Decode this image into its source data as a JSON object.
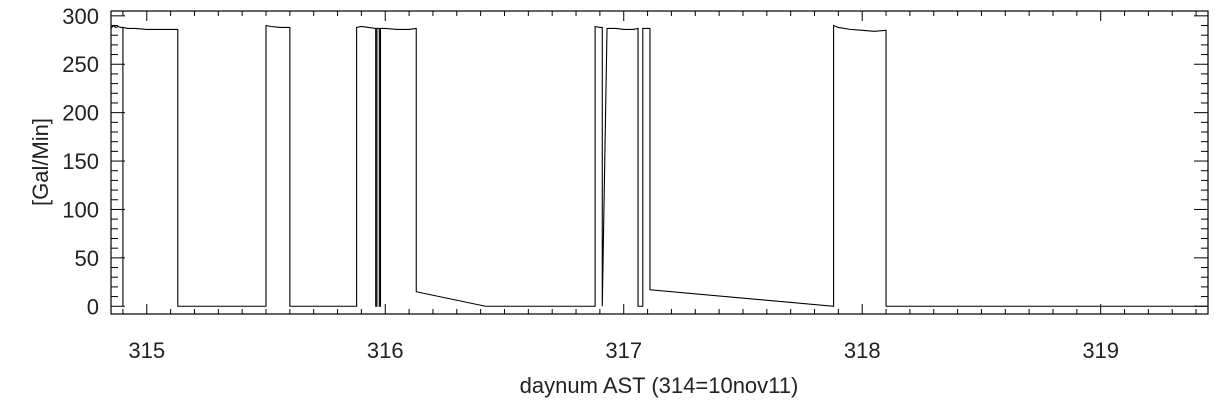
{
  "chart_data": {
    "type": "line",
    "xlabel": "daynum AST (314=10nov11)",
    "ylabel": "[Gal/Min]",
    "xlim": [
      314.85,
      319.45
    ],
    "ylim": [
      -8,
      305
    ],
    "x_ticks": [
      315,
      316,
      317,
      318,
      319
    ],
    "x_tick_labels": [
      "315",
      "316",
      "317",
      "318",
      "319"
    ],
    "y_ticks": [
      0,
      50,
      100,
      150,
      200,
      250,
      300
    ],
    "y_tick_labels": [
      "0",
      "50",
      "100",
      "150",
      "200",
      "250",
      "300"
    ],
    "grid": false,
    "line_color": "#000000",
    "series": [
      {
        "x": [
          314.85,
          314.86,
          314.87,
          314.88,
          314.89,
          314.9,
          314.9,
          314.9,
          314.92,
          314.95,
          315.0,
          315.05,
          315.1,
          315.13,
          315.13,
          315.5,
          315.5,
          315.52,
          315.56,
          315.6,
          315.6,
          315.88,
          315.88,
          315.9,
          315.93,
          315.96,
          315.96,
          315.965,
          315.965,
          315.975,
          315.975,
          315.98,
          315.98,
          316.0,
          316.05,
          316.1,
          316.13,
          316.13,
          316.42,
          316.88,
          316.88,
          316.9,
          316.91,
          316.91,
          316.93,
          316.97,
          317.0,
          317.04,
          317.06,
          317.06,
          317.08,
          317.08,
          317.11,
          317.11,
          317.88,
          317.88,
          317.9,
          317.95,
          318.0,
          318.05,
          318.1,
          318.1,
          319.45
        ],
        "y": [
          287,
          290,
          288,
          289,
          288,
          288,
          0,
          288,
          287,
          287,
          286,
          286,
          286,
          286,
          0,
          0,
          290,
          289,
          288,
          288,
          0,
          0,
          288,
          289,
          288,
          287,
          0,
          0,
          287,
          287,
          0,
          0,
          287,
          287,
          286,
          286,
          287,
          15,
          0,
          0,
          289,
          288,
          288,
          0,
          287,
          287,
          286,
          286,
          287,
          0,
          0,
          287,
          287,
          17,
          0,
          290,
          288,
          286,
          285,
          284,
          285,
          0,
          0
        ]
      }
    ]
  }
}
